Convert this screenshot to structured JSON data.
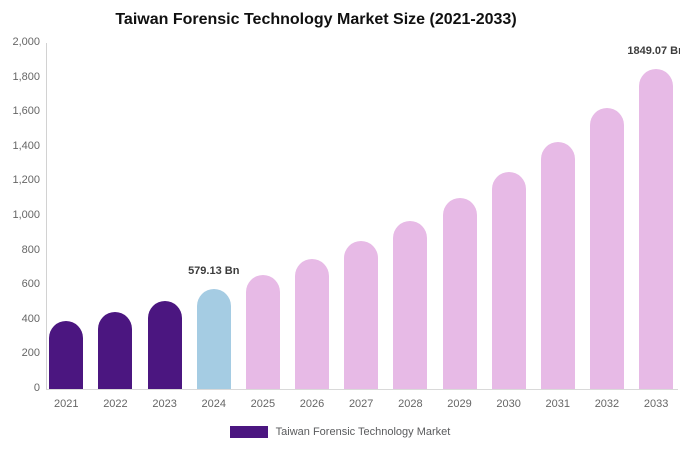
{
  "title": "Taiwan Forensic Technology Market Size (2021-2033)",
  "legend": {
    "label": "Taiwan Forensic Technology Market",
    "swatch_color": "#4B1680"
  },
  "chart_data": {
    "type": "bar",
    "title": "Taiwan Forensic Technology Market Size (2021-2033)",
    "unit": "Bn",
    "categories": [
      "2021",
      "2022",
      "2023",
      "2024",
      "2025",
      "2026",
      "2027",
      "2028",
      "2029",
      "2030",
      "2031",
      "2032",
      "2033"
    ],
    "values": [
      393.3,
      447.5,
      509.1,
      579.13,
      658.9,
      749.6,
      852.8,
      970.2,
      1103.8,
      1255.7,
      1428.6,
      1625.2,
      1849.07
    ],
    "bar_colors": [
      "#4B1680",
      "#4B1680",
      "#4B1680",
      "#A5CCE3",
      "#E7BAE6",
      "#E7BAE6",
      "#E7BAE6",
      "#E7BAE6",
      "#E7BAE6",
      "#E7BAE6",
      "#E7BAE6",
      "#E7BAE6",
      "#E7BAE6"
    ],
    "ylim": [
      0,
      2000
    ],
    "yticks": [
      0,
      200,
      400,
      600,
      800,
      1000,
      1200,
      1400,
      1600,
      1800,
      2000
    ],
    "ytick_labels": [
      "0",
      "200",
      "400",
      "600",
      "800",
      "1,000",
      "1,200",
      "1,400",
      "1,600",
      "1,800",
      "2,000"
    ],
    "annotations": [
      {
        "category": "2024",
        "value": 579.13,
        "label": "579.13 Bn"
      },
      {
        "category": "2033",
        "value": 1849.07,
        "label": "1849.07 Bn"
      }
    ],
    "grid": false,
    "legend_position": "bottom",
    "legend_entries": [
      "Taiwan Forensic Technology Market"
    ]
  }
}
